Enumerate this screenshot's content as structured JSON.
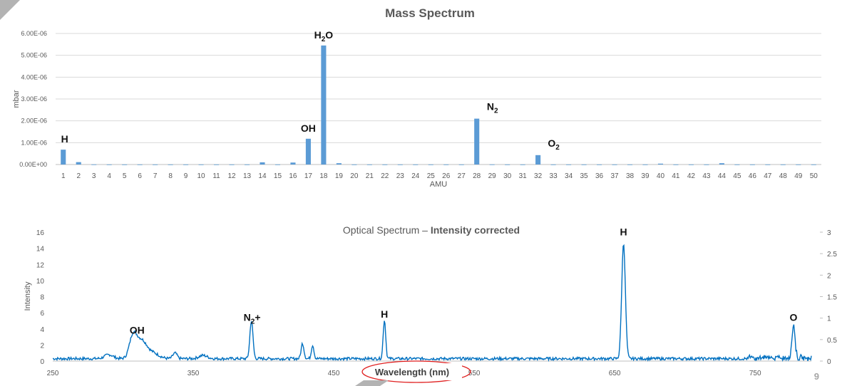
{
  "page": {
    "number": "9"
  },
  "chart_data": [
    {
      "type": "bar",
      "title": "Mass Spectrum",
      "xlabel": "AMU",
      "ylabel": "mbar",
      "ylim": [
        0,
        6e-06
      ],
      "yticks": [
        "0.00E+00",
        "1.00E-06",
        "2.00E-06",
        "3.00E-06",
        "4.00E-06",
        "5.00E-06",
        "6.00E-06"
      ],
      "categories": [
        "1",
        "2",
        "3",
        "4",
        "5",
        "6",
        "7",
        "8",
        "9",
        "10",
        "11",
        "12",
        "13",
        "14",
        "15",
        "16",
        "17",
        "18",
        "19",
        "20",
        "21",
        "22",
        "23",
        "24",
        "25",
        "26",
        "27",
        "28",
        "29",
        "30",
        "31",
        "32",
        "33",
        "34",
        "35",
        "36",
        "37",
        "38",
        "39",
        "40",
        "41",
        "42",
        "43",
        "44",
        "45",
        "46",
        "47",
        "48",
        "49",
        "50"
      ],
      "values": [
        6.8e-07,
        1.1e-07,
        5e-09,
        3e-09,
        3e-09,
        3e-09,
        3e-09,
        3e-09,
        3e-09,
        3e-09,
        3e-09,
        3e-09,
        3e-09,
        1e-07,
        3e-09,
        9e-08,
        1.18e-06,
        5.45e-06,
        6e-08,
        3e-09,
        3e-09,
        3e-09,
        3e-09,
        3e-09,
        3e-09,
        3e-09,
        3e-09,
        2.1e-06,
        5e-09,
        3e-09,
        3e-09,
        4.3e-07,
        3e-09,
        3e-09,
        3e-09,
        3e-09,
        3e-09,
        3e-09,
        3e-09,
        4e-08,
        3e-09,
        3e-09,
        3e-09,
        6e-08,
        3e-09,
        3e-09,
        3e-09,
        3e-09,
        3e-09,
        3e-09
      ],
      "color": "#5b9bd5",
      "grid": true,
      "annotations": [
        {
          "x": "1",
          "value": 6.8e-07,
          "label": "H",
          "sub": ""
        },
        {
          "x": "17",
          "value": 1.18e-06,
          "label": "OH",
          "sub": ""
        },
        {
          "x": "18",
          "value": 5.45e-06,
          "label": "H",
          "sub": "2",
          "suffix": "O"
        },
        {
          "x": "28",
          "value": 2.1e-06,
          "label": "N",
          "sub": "2",
          "suffix": ""
        },
        {
          "x": "32",
          "value": 4.3e-07,
          "label": "O",
          "sub": "2",
          "suffix": ""
        }
      ]
    },
    {
      "type": "line",
      "title_prefix": "Optical Spectrum – ",
      "title_bold": "Intensity corrected",
      "xlabel": "Wavelength (nm)",
      "ylabel": "Intensity",
      "xlim": [
        250,
        790
      ],
      "ylim": [
        0,
        16
      ],
      "y2lim": [
        0,
        3
      ],
      "xticks": [
        "250",
        "350",
        "450",
        "550",
        "650",
        "750"
      ],
      "yticks": [
        "0",
        "2",
        "4",
        "6",
        "8",
        "10",
        "12",
        "14",
        "16"
      ],
      "y2ticks": [
        "0",
        "0.5",
        "1",
        "1.5",
        "2",
        "2.5",
        "3"
      ],
      "color": "#0070c0",
      "baseline": 0.3,
      "peaks": [
        {
          "center": 290,
          "height": 0.5,
          "width": 3
        },
        {
          "center": 307,
          "height": 2.5,
          "width": 2.5
        },
        {
          "center": 313,
          "height": 2.3,
          "width": 4
        },
        {
          "center": 322,
          "height": 0.6,
          "width": 4
        },
        {
          "center": 337,
          "height": 0.7,
          "width": 1.5
        },
        {
          "center": 357,
          "height": 0.4,
          "width": 3
        },
        {
          "center": 391.4,
          "height": 4.7,
          "width": 1.1
        },
        {
          "center": 427.8,
          "height": 1.9,
          "width": 1
        },
        {
          "center": 435,
          "height": 1.7,
          "width": 0.9
        },
        {
          "center": 486.1,
          "height": 4.8,
          "width": 0.9
        },
        {
          "center": 656.3,
          "height": 14.4,
          "width": 1.3
        },
        {
          "center": 777.3,
          "height": 4.1,
          "width": 1.1
        }
      ],
      "annotations": [
        {
          "x": 310,
          "y": 3.4,
          "label": "OH",
          "sub": "",
          "suffix": ""
        },
        {
          "x": 391.4,
          "y": 5.0,
          "label": "N",
          "sub": "2",
          "suffix": "+"
        },
        {
          "x": 486.1,
          "y": 5.4,
          "label": "H",
          "sub": "",
          "suffix": ""
        },
        {
          "x": 656.3,
          "y": 15.6,
          "label": "H",
          "sub": "",
          "suffix": ""
        },
        {
          "x": 777.3,
          "y": 5.0,
          "label": "O",
          "sub": "",
          "suffix": ""
        }
      ]
    }
  ]
}
